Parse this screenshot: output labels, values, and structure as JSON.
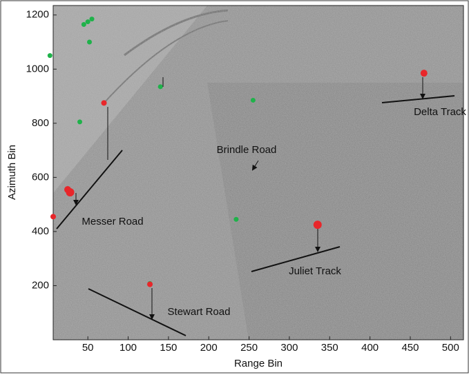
{
  "chart_data": {
    "type": "scatter",
    "xlabel": "Range Bin",
    "ylabel": "Azimuth Bin",
    "xlim": [
      7,
      516
    ],
    "ylim": [
      0,
      1235
    ],
    "xticks": [
      50,
      100,
      150,
      200,
      250,
      300,
      350,
      400,
      450,
      500
    ],
    "yticks": [
      200,
      400,
      600,
      800,
      1000,
      1200
    ],
    "series": [
      {
        "color": "#1fb24a",
        "x": [
          3,
          52,
          40,
          140,
          255,
          234,
          127,
          45,
          50,
          55
        ],
        "y": [
          1050,
          1100,
          805,
          935,
          885,
          445,
          208,
          1165,
          1175,
          1185
        ]
      },
      {
        "color": "#e8262a",
        "x": [
          467,
          70,
          25,
          28,
          7,
          335,
          127
        ],
        "y": [
          985,
          875,
          555,
          545,
          455,
          425,
          205
        ],
        "sizes": [
          5,
          4,
          5,
          6,
          4,
          6,
          4
        ]
      }
    ],
    "annotations": [
      "Delta Track",
      "Brindle Road",
      "Messer Road",
      "Juliet Track",
      "Stewart Road"
    ]
  }
}
